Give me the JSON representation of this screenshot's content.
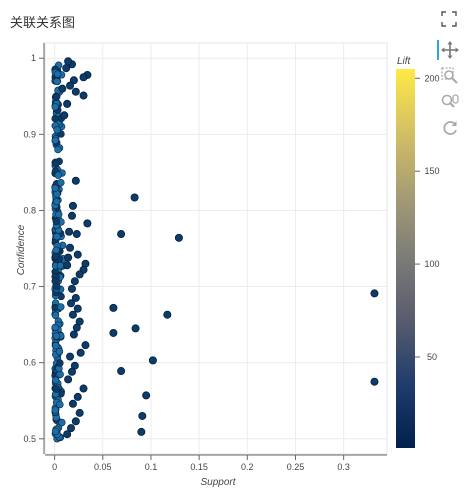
{
  "page": {
    "title": "关联关系图"
  },
  "toolbar": {
    "icons": [
      "fullscreen-icon",
      "pan-icon",
      "box-zoom-icon",
      "wheel-zoom-icon",
      "reset-icon"
    ]
  },
  "chart_data": {
    "type": "scatter",
    "title": "",
    "xlabel": "Support",
    "ylabel": "Confidence",
    "xlim": [
      -0.01,
      0.345
    ],
    "ylim": [
      0.48,
      1.02
    ],
    "xticks": [
      0,
      0.05,
      0.1,
      0.15,
      0.2,
      0.25,
      0.3
    ],
    "xtick_labels": [
      "0",
      "0.05",
      "0.1",
      "0.15",
      "0.2",
      "0.25",
      "0.3"
    ],
    "yticks": [
      0.5,
      0.6,
      0.7,
      0.8,
      0.9,
      1.0
    ],
    "ytick_labels": [
      "0.5",
      "0.6",
      "0.7",
      "0.8",
      "0.9",
      "1"
    ],
    "grid": true,
    "colorbar": {
      "title": "Lift",
      "range": [
        1,
        205
      ],
      "ticks": [
        50,
        100,
        150,
        200
      ],
      "tick_labels": [
        "50",
        "100",
        "150",
        "200"
      ],
      "colors": [
        "#00204c",
        "#1f3c6d",
        "#575c6d",
        "#7c7b78",
        "#a59c74",
        "#d3c064",
        "#ffe945"
      ]
    },
    "points": [
      {
        "x": 0.083,
        "y": 0.817
      },
      {
        "x": 0.069,
        "y": 0.769
      },
      {
        "x": 0.129,
        "y": 0.764
      },
      {
        "x": 0.332,
        "y": 0.691
      },
      {
        "x": 0.061,
        "y": 0.672
      },
      {
        "x": 0.117,
        "y": 0.663
      },
      {
        "x": 0.084,
        "y": 0.645
      },
      {
        "x": 0.061,
        "y": 0.639
      },
      {
        "x": 0.102,
        "y": 0.603
      },
      {
        "x": 0.069,
        "y": 0.589
      },
      {
        "x": 0.332,
        "y": 0.575
      },
      {
        "x": 0.095,
        "y": 0.557
      },
      {
        "x": 0.091,
        "y": 0.53
      },
      {
        "x": 0.09,
        "y": 0.509
      },
      {
        "x": 0.034,
        "y": 0.978
      },
      {
        "x": 0.03,
        "y": 0.975
      },
      {
        "x": 0.03,
        "y": 0.951
      },
      {
        "x": 0.022,
        "y": 0.956
      },
      {
        "x": 0.018,
        "y": 0.992
      },
      {
        "x": 0.02,
        "y": 0.971
      },
      {
        "x": 0.014,
        "y": 0.996
      },
      {
        "x": 0.012,
        "y": 0.987
      },
      {
        "x": 0.016,
        "y": 0.964
      },
      {
        "x": 0.013,
        "y": 0.94
      },
      {
        "x": 0.01,
        "y": 0.925
      },
      {
        "x": 0.008,
        "y": 0.96
      },
      {
        "x": 0.022,
        "y": 0.839
      },
      {
        "x": 0.034,
        "y": 0.783
      },
      {
        "x": 0.023,
        "y": 0.769
      },
      {
        "x": 0.024,
        "y": 0.742
      },
      {
        "x": 0.032,
        "y": 0.73
      },
      {
        "x": 0.03,
        "y": 0.722
      },
      {
        "x": 0.026,
        "y": 0.716
      },
      {
        "x": 0.019,
        "y": 0.806
      },
      {
        "x": 0.018,
        "y": 0.793
      },
      {
        "x": 0.015,
        "y": 0.772
      },
      {
        "x": 0.016,
        "y": 0.751
      },
      {
        "x": 0.014,
        "y": 0.738
      },
      {
        "x": 0.013,
        "y": 0.728
      },
      {
        "x": 0.021,
        "y": 0.707
      },
      {
        "x": 0.018,
        "y": 0.697
      },
      {
        "x": 0.022,
        "y": 0.685
      },
      {
        "x": 0.017,
        "y": 0.678
      },
      {
        "x": 0.024,
        "y": 0.671
      },
      {
        "x": 0.019,
        "y": 0.663
      },
      {
        "x": 0.026,
        "y": 0.654
      },
      {
        "x": 0.023,
        "y": 0.646
      },
      {
        "x": 0.02,
        "y": 0.637
      },
      {
        "x": 0.032,
        "y": 0.623
      },
      {
        "x": 0.027,
        "y": 0.613
      },
      {
        "x": 0.016,
        "y": 0.608
      },
      {
        "x": 0.021,
        "y": 0.596
      },
      {
        "x": 0.018,
        "y": 0.588
      },
      {
        "x": 0.014,
        "y": 0.578
      },
      {
        "x": 0.03,
        "y": 0.566
      },
      {
        "x": 0.024,
        "y": 0.555
      },
      {
        "x": 0.019,
        "y": 0.546
      },
      {
        "x": 0.026,
        "y": 0.534
      },
      {
        "x": 0.022,
        "y": 0.523
      },
      {
        "x": 0.017,
        "y": 0.514
      },
      {
        "x": 0.013,
        "y": 0.506
      }
    ]
  }
}
